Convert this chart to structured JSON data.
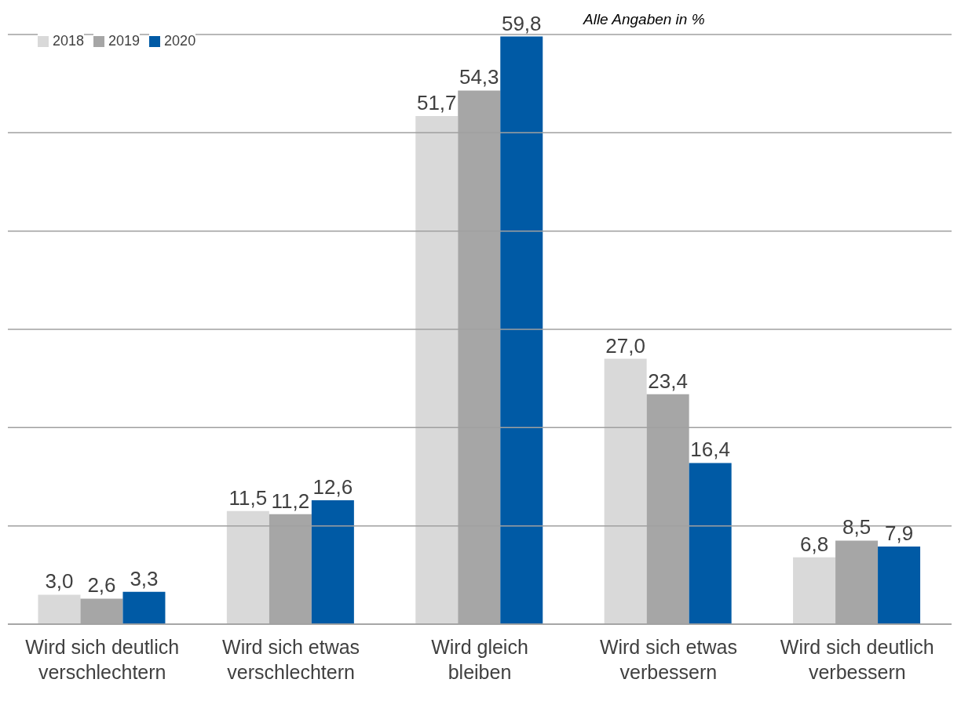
{
  "chart_data": {
    "type": "bar",
    "categories": [
      "Wird sich deutlich verschlechtern",
      "Wird sich etwas verschlechtern",
      "Wird gleich bleiben",
      "Wird sich etwas verbessern",
      "Wird sich deutlich verbessern"
    ],
    "series": [
      {
        "name": "2018",
        "color": "#d9d9d9",
        "values": [
          3.0,
          11.5,
          51.7,
          27.0,
          6.8
        ],
        "value_labels": [
          "3,0",
          "11,5",
          "51,7",
          "27,0",
          "6,8"
        ]
      },
      {
        "name": "2019",
        "color": "#a6a6a6",
        "values": [
          2.6,
          11.2,
          54.3,
          23.4,
          8.5
        ],
        "value_labels": [
          "2,6",
          "11,2",
          "54,3",
          "23,4",
          "8,5"
        ]
      },
      {
        "name": "2020",
        "color": "#005aa5",
        "values": [
          3.3,
          12.6,
          59.8,
          16.4,
          7.9
        ],
        "value_labels": [
          "3,3",
          "12,6",
          "59,8",
          "16,4",
          "7,9"
        ]
      }
    ],
    "ylim": [
      0,
      60
    ],
    "yticks": [
      {
        "value": 0,
        "label": null
      },
      {
        "value": 10,
        "label": null
      },
      {
        "value": 20,
        "label": null
      },
      {
        "value": 30,
        "label": null
      },
      {
        "value": 40,
        "label": null
      },
      {
        "value": 50,
        "label": null
      },
      {
        "value": 60,
        "label": null
      }
    ],
    "tick_labels": "x",
    "grid": "y",
    "legend": "top left",
    "annotations": [
      "Alle Angaben in %"
    ]
  }
}
